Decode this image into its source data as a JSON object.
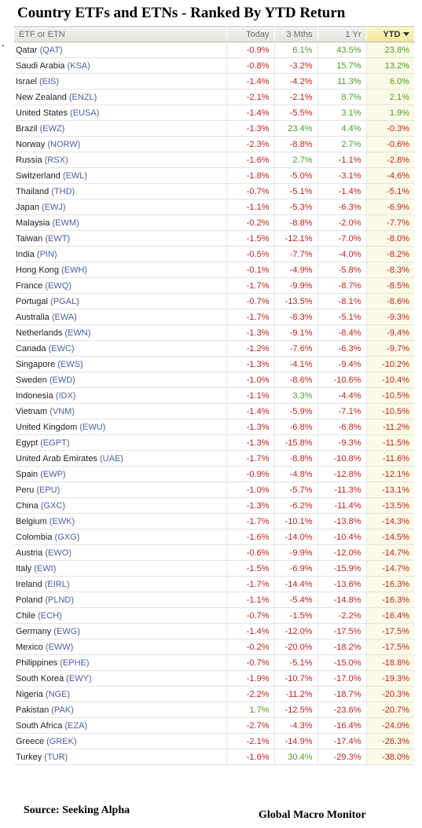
{
  "title": "Country ETFs and ETNs - Ranked By YTD Return",
  "columns": {
    "name": "ETF or ETN",
    "today": "Today",
    "m3": "3 Mths",
    "y1": "1 Yr",
    "ytd": "YTD"
  },
  "colors": {
    "negative": "#c2221c",
    "positive": "#4e9a28",
    "ticker": "#4a5fa0"
  },
  "icons": {
    "sort": "sort-down-triangle-icon"
  },
  "rows": [
    {
      "country": "Qatar",
      "ticker": "(QAT)",
      "today": "-0.9%",
      "m3": "6.1%",
      "y1": "43.5%",
      "ytd": "23.8%"
    },
    {
      "country": "Saudi Arabia",
      "ticker": "(KSA)",
      "today": "-0.8%",
      "m3": "-3.2%",
      "y1": "15.7%",
      "ytd": "13.2%"
    },
    {
      "country": "Israel",
      "ticker": "(EIS)",
      "today": "-1.4%",
      "m3": "-4.2%",
      "y1": "11.3%",
      "ytd": "6.0%"
    },
    {
      "country": "New Zealand",
      "ticker": "(ENZL)",
      "today": "-2.1%",
      "m3": "-2.1%",
      "y1": "8.7%",
      "ytd": "2.1%"
    },
    {
      "country": "United States",
      "ticker": "(EUSA)",
      "today": "-1.4%",
      "m3": "-5.5%",
      "y1": "3.1%",
      "ytd": "1.9%"
    },
    {
      "country": "Brazil",
      "ticker": "(EWZ)",
      "today": "-1.3%",
      "m3": "23.4%",
      "y1": "4.4%",
      "ytd": "-0.3%"
    },
    {
      "country": "Norway",
      "ticker": "(NORW)",
      "today": "-2.3%",
      "m3": "-8.8%",
      "y1": "2.7%",
      "ytd": "-0.6%"
    },
    {
      "country": "Russia",
      "ticker": "(RSX)",
      "today": "-1.6%",
      "m3": "2.7%",
      "y1": "-1.1%",
      "ytd": "-2.8%"
    },
    {
      "country": "Switzerland",
      "ticker": "(EWL)",
      "today": "-1.8%",
      "m3": "-5.0%",
      "y1": "-3.1%",
      "ytd": "-4.6%"
    },
    {
      "country": "Thailand",
      "ticker": "(THD)",
      "today": "-0.7%",
      "m3": "-5.1%",
      "y1": "-1.4%",
      "ytd": "-5.1%"
    },
    {
      "country": "Japan",
      "ticker": "(EWJ)",
      "today": "-1.1%",
      "m3": "-5.3%",
      "y1": "-6.3%",
      "ytd": "-6.9%"
    },
    {
      "country": "Malaysia",
      "ticker": "(EWM)",
      "today": "-0.2%",
      "m3": "-8.8%",
      "y1": "-2.0%",
      "ytd": "-7.7%"
    },
    {
      "country": "Taiwan",
      "ticker": "(EWT)",
      "today": "-1.5%",
      "m3": "-12.1%",
      "y1": "-7.0%",
      "ytd": "-8.0%"
    },
    {
      "country": "India",
      "ticker": "(PIN)",
      "today": "-0.5%",
      "m3": "-7.7%",
      "y1": "-4.0%",
      "ytd": "-8.2%"
    },
    {
      "country": "Hong Kong",
      "ticker": "(EWH)",
      "today": "-0.1%",
      "m3": "-4.9%",
      "y1": "-5.8%",
      "ytd": "-8.3%"
    },
    {
      "country": "France",
      "ticker": "(EWQ)",
      "today": "-1.7%",
      "m3": "-9.9%",
      "y1": "-8.7%",
      "ytd": "-8.5%"
    },
    {
      "country": "Portugal",
      "ticker": "(PGAL)",
      "today": "-0.7%",
      "m3": "-13.5%",
      "y1": "-8.1%",
      "ytd": "-8.6%"
    },
    {
      "country": "Australia",
      "ticker": "(EWA)",
      "today": "-1.7%",
      "m3": "-8.3%",
      "y1": "-5.1%",
      "ytd": "-9.3%"
    },
    {
      "country": "Netherlands",
      "ticker": "(EWN)",
      "today": "-1.3%",
      "m3": "-9.1%",
      "y1": "-8.4%",
      "ytd": "-9.4%"
    },
    {
      "country": "Canada",
      "ticker": "(EWC)",
      "today": "-1.2%",
      "m3": "-7.6%",
      "y1": "-6.3%",
      "ytd": "-9.7%"
    },
    {
      "country": "Singapore",
      "ticker": "(EWS)",
      "today": "-1.3%",
      "m3": "-4.1%",
      "y1": "-9.4%",
      "ytd": "-10.2%"
    },
    {
      "country": "Sweden",
      "ticker": "(EWD)",
      "today": "-1.0%",
      "m3": "-8.6%",
      "y1": "-10.6%",
      "ytd": "-10.4%"
    },
    {
      "country": "Indonesia",
      "ticker": "(IDX)",
      "today": "-1.1%",
      "m3": "3.3%",
      "y1": "-4.4%",
      "ytd": "-10.5%"
    },
    {
      "country": "Vietnam",
      "ticker": "(VNM)",
      "today": "-1.4%",
      "m3": "-5.9%",
      "y1": "-7.1%",
      "ytd": "-10.5%"
    },
    {
      "country": "United Kingdom",
      "ticker": "(EWU)",
      "today": "-1.3%",
      "m3": "-6.8%",
      "y1": "-6.8%",
      "ytd": "-11.2%"
    },
    {
      "country": "Egypt",
      "ticker": "(EGPT)",
      "today": "-1.3%",
      "m3": "-15.8%",
      "y1": "-9.3%",
      "ytd": "-11.5%"
    },
    {
      "country": "United Arab Emirates",
      "ticker": "(UAE)",
      "today": "-1.7%",
      "m3": "-8.8%",
      "y1": "-10.8%",
      "ytd": "-11.6%"
    },
    {
      "country": "Spain",
      "ticker": "(EWP)",
      "today": "-0.9%",
      "m3": "-4.8%",
      "y1": "-12.8%",
      "ytd": "-12.1%"
    },
    {
      "country": "Peru",
      "ticker": "(EPU)",
      "today": "-1.0%",
      "m3": "-5.7%",
      "y1": "-11.3%",
      "ytd": "-13.1%"
    },
    {
      "country": "China",
      "ticker": "(GXC)",
      "today": "-1.3%",
      "m3": "-6.2%",
      "y1": "-11.4%",
      "ytd": "-13.5%"
    },
    {
      "country": "Belgium",
      "ticker": "(EWK)",
      "today": "-1.7%",
      "m3": "-10.1%",
      "y1": "-13.8%",
      "ytd": "-14.3%"
    },
    {
      "country": "Colombia",
      "ticker": "(GXG)",
      "today": "-1.6%",
      "m3": "-14.0%",
      "y1": "-10.4%",
      "ytd": "-14.5%"
    },
    {
      "country": "Austria",
      "ticker": "(EWO)",
      "today": "-0.6%",
      "m3": "-9.9%",
      "y1": "-12.0%",
      "ytd": "-14.7%"
    },
    {
      "country": "Italy",
      "ticker": "(EWI)",
      "today": "-1.5%",
      "m3": "-6.9%",
      "y1": "-15.9%",
      "ytd": "-14.7%"
    },
    {
      "country": "Ireland",
      "ticker": "(EIRL)",
      "today": "-1.7%",
      "m3": "-14.4%",
      "y1": "-13.6%",
      "ytd": "-16.3%"
    },
    {
      "country": "Poland",
      "ticker": "(PLND)",
      "today": "-1.1%",
      "m3": "-5.4%",
      "y1": "-14.8%",
      "ytd": "-16.3%"
    },
    {
      "country": "Chile",
      "ticker": "(ECH)",
      "today": "-0.7%",
      "m3": "-1.5%",
      "y1": "-2.2%",
      "ytd": "-16.4%"
    },
    {
      "country": "Germany",
      "ticker": "(EWG)",
      "today": "-1.4%",
      "m3": "-12.0%",
      "y1": "-17.5%",
      "ytd": "-17.5%"
    },
    {
      "country": "Mexico",
      "ticker": "(EWW)",
      "today": "-0.2%",
      "m3": "-20.0%",
      "y1": "-18.2%",
      "ytd": "-17.5%"
    },
    {
      "country": "Philippines",
      "ticker": "(EPHE)",
      "today": "-0.7%",
      "m3": "-5.1%",
      "y1": "-15.0%",
      "ytd": "-18.8%"
    },
    {
      "country": "South Korea",
      "ticker": "(EWY)",
      "today": "-1.9%",
      "m3": "-10.7%",
      "y1": "-17.0%",
      "ytd": "-19.3%"
    },
    {
      "country": "Nigeria",
      "ticker": "(NGE)",
      "today": "-2.2%",
      "m3": "-11.2%",
      "y1": "-18.7%",
      "ytd": "-20.3%"
    },
    {
      "country": "Pakistan",
      "ticker": "(PAK)",
      "today": "1.7%",
      "m3": "-12.5%",
      "y1": "-23.6%",
      "ytd": "-20.7%"
    },
    {
      "country": "South Africa",
      "ticker": "(EZA)",
      "today": "-2.7%",
      "m3": "-4.3%",
      "y1": "-16.4%",
      "ytd": "-24.0%"
    },
    {
      "country": "Greece",
      "ticker": "(GREK)",
      "today": "-2.1%",
      "m3": "-14.9%",
      "y1": "-17.4%",
      "ytd": "-26.3%"
    },
    {
      "country": "Turkey",
      "ticker": "(TUR)",
      "today": "-1.6%",
      "m3": "30.4%",
      "y1": "-29.3%",
      "ytd": "-38.0%"
    }
  ],
  "footer": {
    "source": "Source:  Seeking Alpha",
    "credit": "Global Macro Monitor"
  }
}
